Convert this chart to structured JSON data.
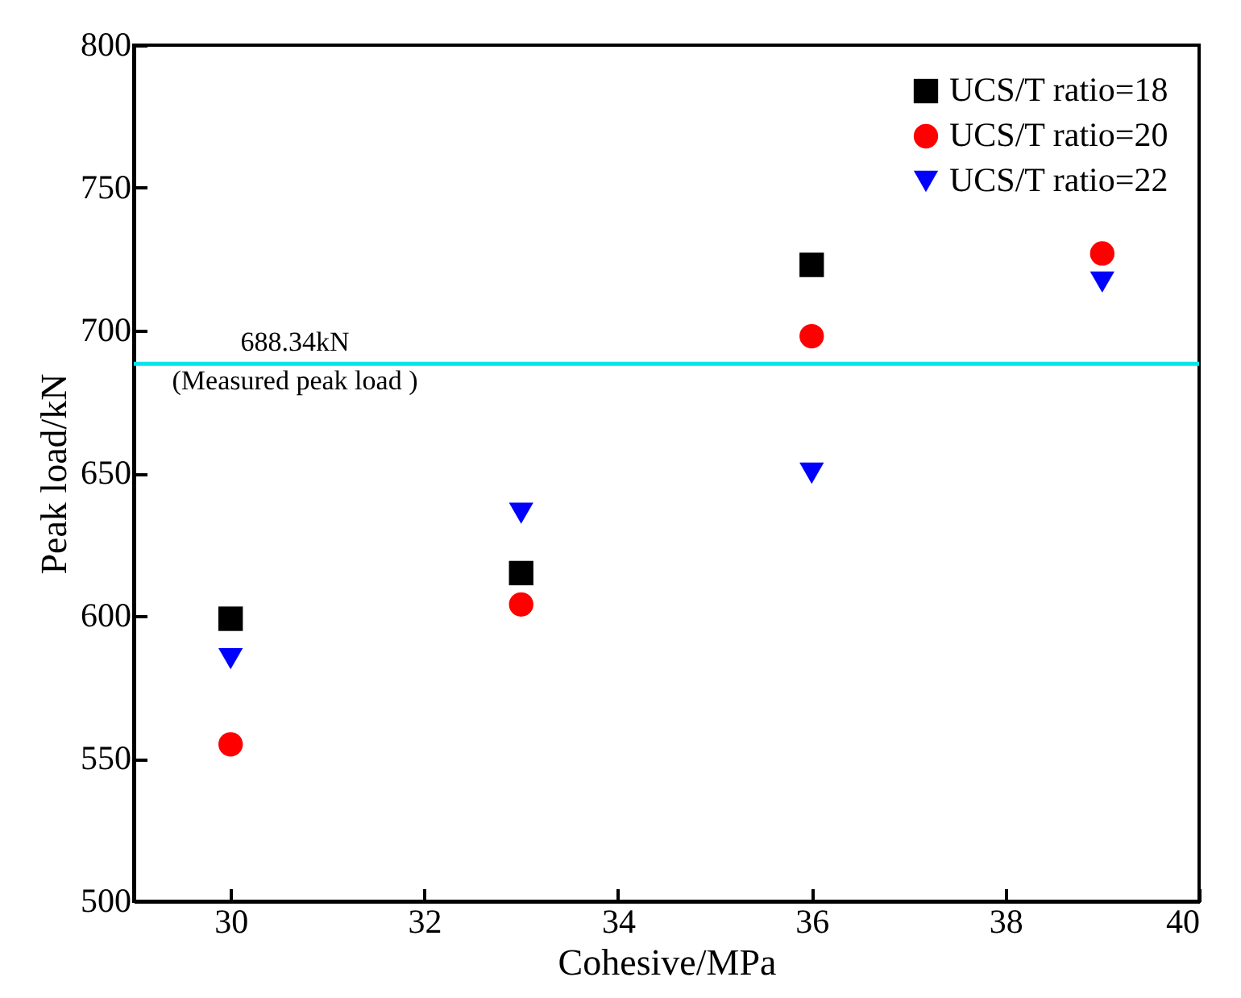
{
  "chart_data": {
    "type": "scatter",
    "xlabel": "Cohesive/MPa",
    "ylabel": "Peak load/kN",
    "x": [
      30,
      33,
      36,
      39
    ],
    "series": [
      {
        "name": "UCS/T ratio=18",
        "color": "#000000",
        "marker": "square",
        "values": [
          599,
          615,
          723,
          null
        ]
      },
      {
        "name": "UCS/T ratio=20",
        "color": "#ff0000",
        "marker": "circle",
        "values": [
          555,
          604,
          698,
          727
        ]
      },
      {
        "name": "UCS/T ratio=22",
        "color": "#0000ff",
        "marker": "triangle",
        "values": [
          585,
          636,
          650,
          717
        ]
      }
    ],
    "xlim": [
      29,
      40
    ],
    "xticks": [
      30,
      32,
      34,
      36,
      38,
      40
    ],
    "ylim": [
      500,
      800
    ],
    "yticks": [
      500,
      550,
      600,
      650,
      700,
      750,
      800
    ],
    "ref_lines": [
      {
        "axis": "y",
        "value": 688.34,
        "label": "688.34kN\n(Measured peak load )",
        "color": "#00e5ee"
      }
    ],
    "legend": "top right",
    "grid": false
  }
}
